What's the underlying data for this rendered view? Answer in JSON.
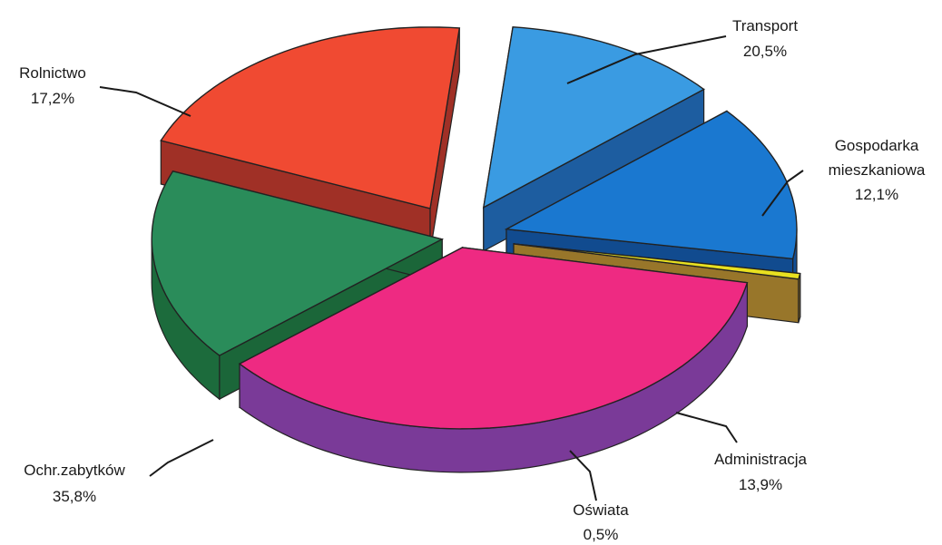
{
  "chart_data": {
    "type": "pie",
    "style": "3d-exploded",
    "slices": [
      {
        "label": "Transport",
        "value": 20.5,
        "value_label": "20,5%",
        "color": "#f04a32",
        "side_color": "#a83328"
      },
      {
        "label_lines": [
          "Gospodarka",
          "mieszkaniowa"
        ],
        "value": 12.1,
        "value_label": "12,1%",
        "color": "#3a9be2",
        "side_color": "#1f62a8"
      },
      {
        "label": "Administracja",
        "value": 13.9,
        "value_label": "13,9%",
        "color": "#1a78d0",
        "side_color": "#124f96"
      },
      {
        "label": "Oświata",
        "value": 0.5,
        "value_label": "0,5%",
        "color": "#e8e020",
        "side_color": "#a07c2c"
      },
      {
        "label": "Ochr.zabytków",
        "value": 35.8,
        "value_label": "35,8%",
        "color": "#ee2a82",
        "side_color": "#7a3a98"
      },
      {
        "label": "Rolnictwo",
        "value": 17.2,
        "value_label": "17,2%",
        "color": "#2a8c5a",
        "side_color": "#1c6b3c"
      }
    ]
  }
}
